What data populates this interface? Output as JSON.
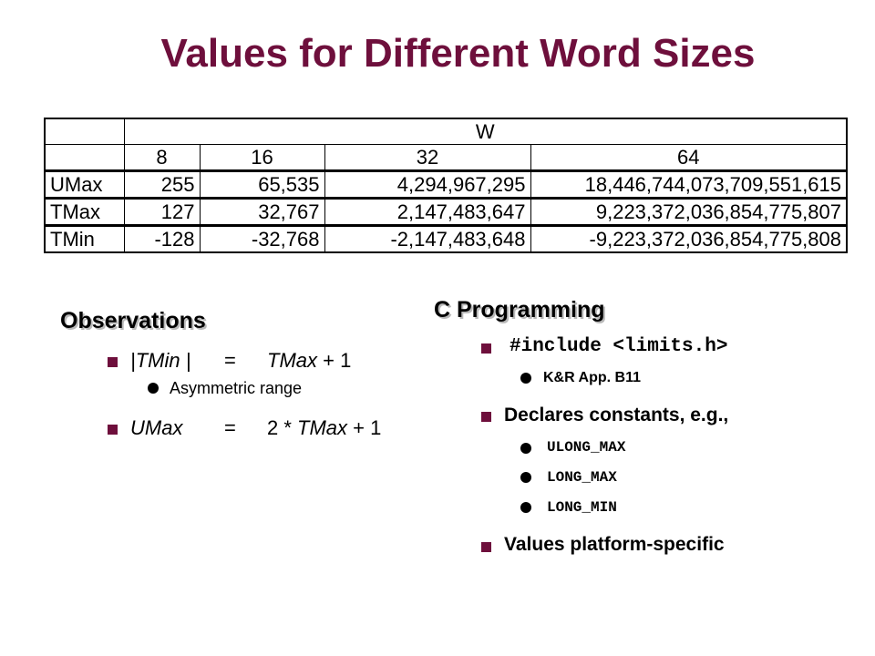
{
  "title": "Values for Different Word Sizes",
  "table": {
    "group_header": "W",
    "columns": [
      "8",
      "16",
      "32",
      "64"
    ],
    "rows": [
      {
        "label": "UMax",
        "values": [
          "255",
          "65,535",
          "4,294,967,295",
          "18,446,744,073,709,551,615"
        ]
      },
      {
        "label": "TMax",
        "values": [
          "127",
          "32,767",
          "2,147,483,647",
          "9,223,372,036,854,775,807"
        ]
      },
      {
        "label": "TMin",
        "values": [
          "-128",
          "-32,768",
          "-2,147,483,648",
          "-9,223,372,036,854,775,808"
        ]
      }
    ]
  },
  "observations": {
    "heading": "Observations",
    "item1": {
      "lhs": "|TMin |",
      "eq": "=",
      "rhs_var": "TMax",
      "rhs_rest": " + 1"
    },
    "item1_sub": "Asymmetric range",
    "item2": {
      "lhs": "UMax",
      "eq": "=",
      "rhs_pre": "2 * ",
      "rhs_var": "TMax",
      "rhs_rest": " + 1"
    }
  },
  "c_programming": {
    "heading": "C Programming",
    "include_line": "#include <limits.h>",
    "include_sub": "K&R App. B11",
    "declares": "Declares constants, e.g.,",
    "constants": [
      "ULONG_MAX",
      "LONG_MAX",
      "LONG_MIN"
    ],
    "platform": "Values platform-specific"
  },
  "colors": {
    "title": "#6e0f3c",
    "bullet": "#6e0f3c"
  }
}
